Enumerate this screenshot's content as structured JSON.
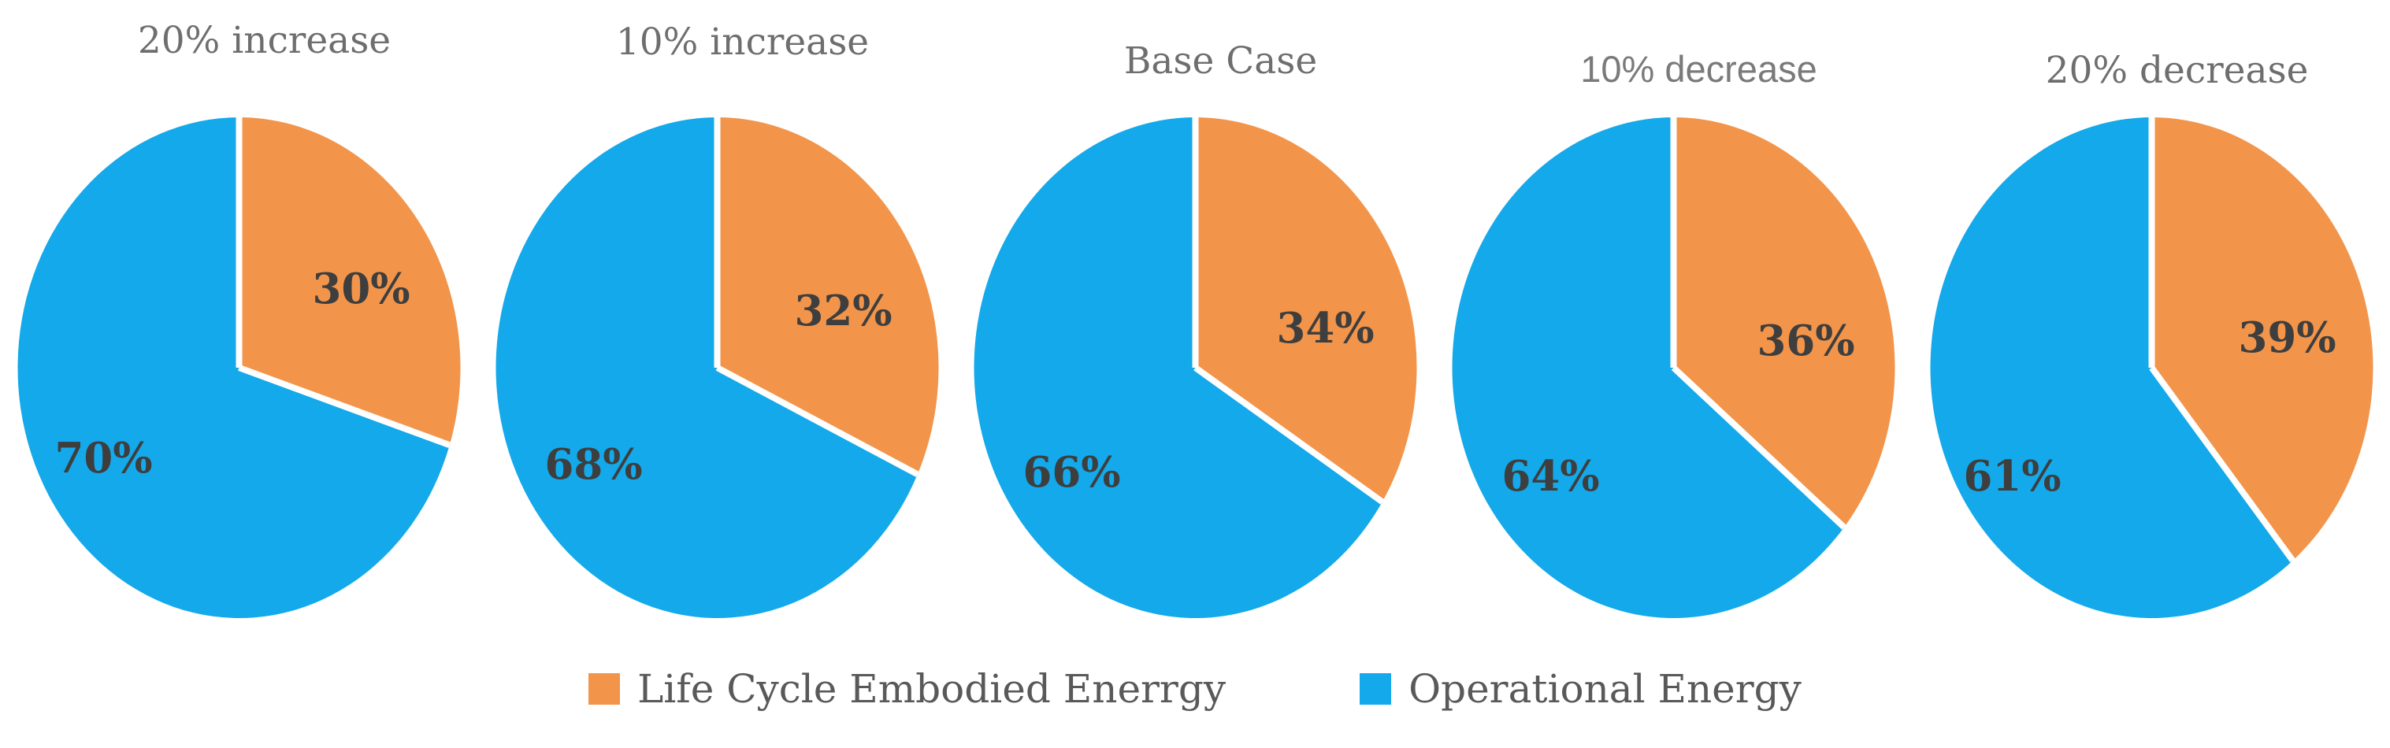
{
  "figure": {
    "background": "#FFFFFF",
    "colors": {
      "embodied": "#F2954B",
      "operational": "#14A9EA",
      "separator": "#FFFFFF",
      "slice_label": "#3E3E3E",
      "title": "#6E6E6E",
      "legend_text": "#595959"
    },
    "legend": {
      "position": "bottom",
      "items": [
        {
          "series": "embodied",
          "label": "Life Cycle Embodied Enerrgy",
          "color": "#F2954B"
        },
        {
          "series": "operational",
          "label": "Operational Energy",
          "color": "#14A9EA"
        }
      ]
    }
  },
  "chart_data": [
    {
      "type": "pie",
      "title": "20% increase",
      "start_angle_deg": 0,
      "direction": "clockwise",
      "slices": [
        {
          "name": "Life Cycle Embodied Enerrgy",
          "value_pct": 30,
          "data_label": "30%",
          "color": "#F2954B"
        },
        {
          "name": "Operational Energy",
          "value_pct": 70,
          "data_label": "70%",
          "color": "#14A9EA"
        }
      ]
    },
    {
      "type": "pie",
      "title": "10% increase",
      "start_angle_deg": 0,
      "direction": "clockwise",
      "slices": [
        {
          "name": "Life Cycle Embodied Enerrgy",
          "value_pct": 32,
          "data_label": "32%",
          "color": "#F2954B"
        },
        {
          "name": "Operational Energy",
          "value_pct": 68,
          "data_label": "68%",
          "color": "#14A9EA"
        }
      ]
    },
    {
      "type": "pie",
      "title": "Base Case",
      "start_angle_deg": 0,
      "direction": "clockwise",
      "slices": [
        {
          "name": "Life Cycle Embodied Enerrgy",
          "value_pct": 34,
          "data_label": "34%",
          "color": "#F2954B"
        },
        {
          "name": "Operational Energy",
          "value_pct": 66,
          "data_label": "66%",
          "color": "#14A9EA"
        }
      ]
    },
    {
      "type": "pie",
      "title": "10% decrease",
      "start_angle_deg": 0,
      "direction": "clockwise",
      "slices": [
        {
          "name": "Life Cycle Embodied Enerrgy",
          "value_pct": 36,
          "data_label": "36%",
          "color": "#F2954B"
        },
        {
          "name": "Operational Energy",
          "value_pct": 64,
          "data_label": "64%",
          "color": "#14A9EA"
        }
      ]
    },
    {
      "type": "pie",
      "title": "20% decrease",
      "start_angle_deg": 0,
      "direction": "clockwise",
      "slices": [
        {
          "name": "Life Cycle Embodied Enerrgy",
          "value_pct": 39,
          "data_label": "39%",
          "color": "#F2954B"
        },
        {
          "name": "Operational Energy",
          "value_pct": 61,
          "data_label": "61%",
          "color": "#14A9EA"
        }
      ]
    }
  ]
}
